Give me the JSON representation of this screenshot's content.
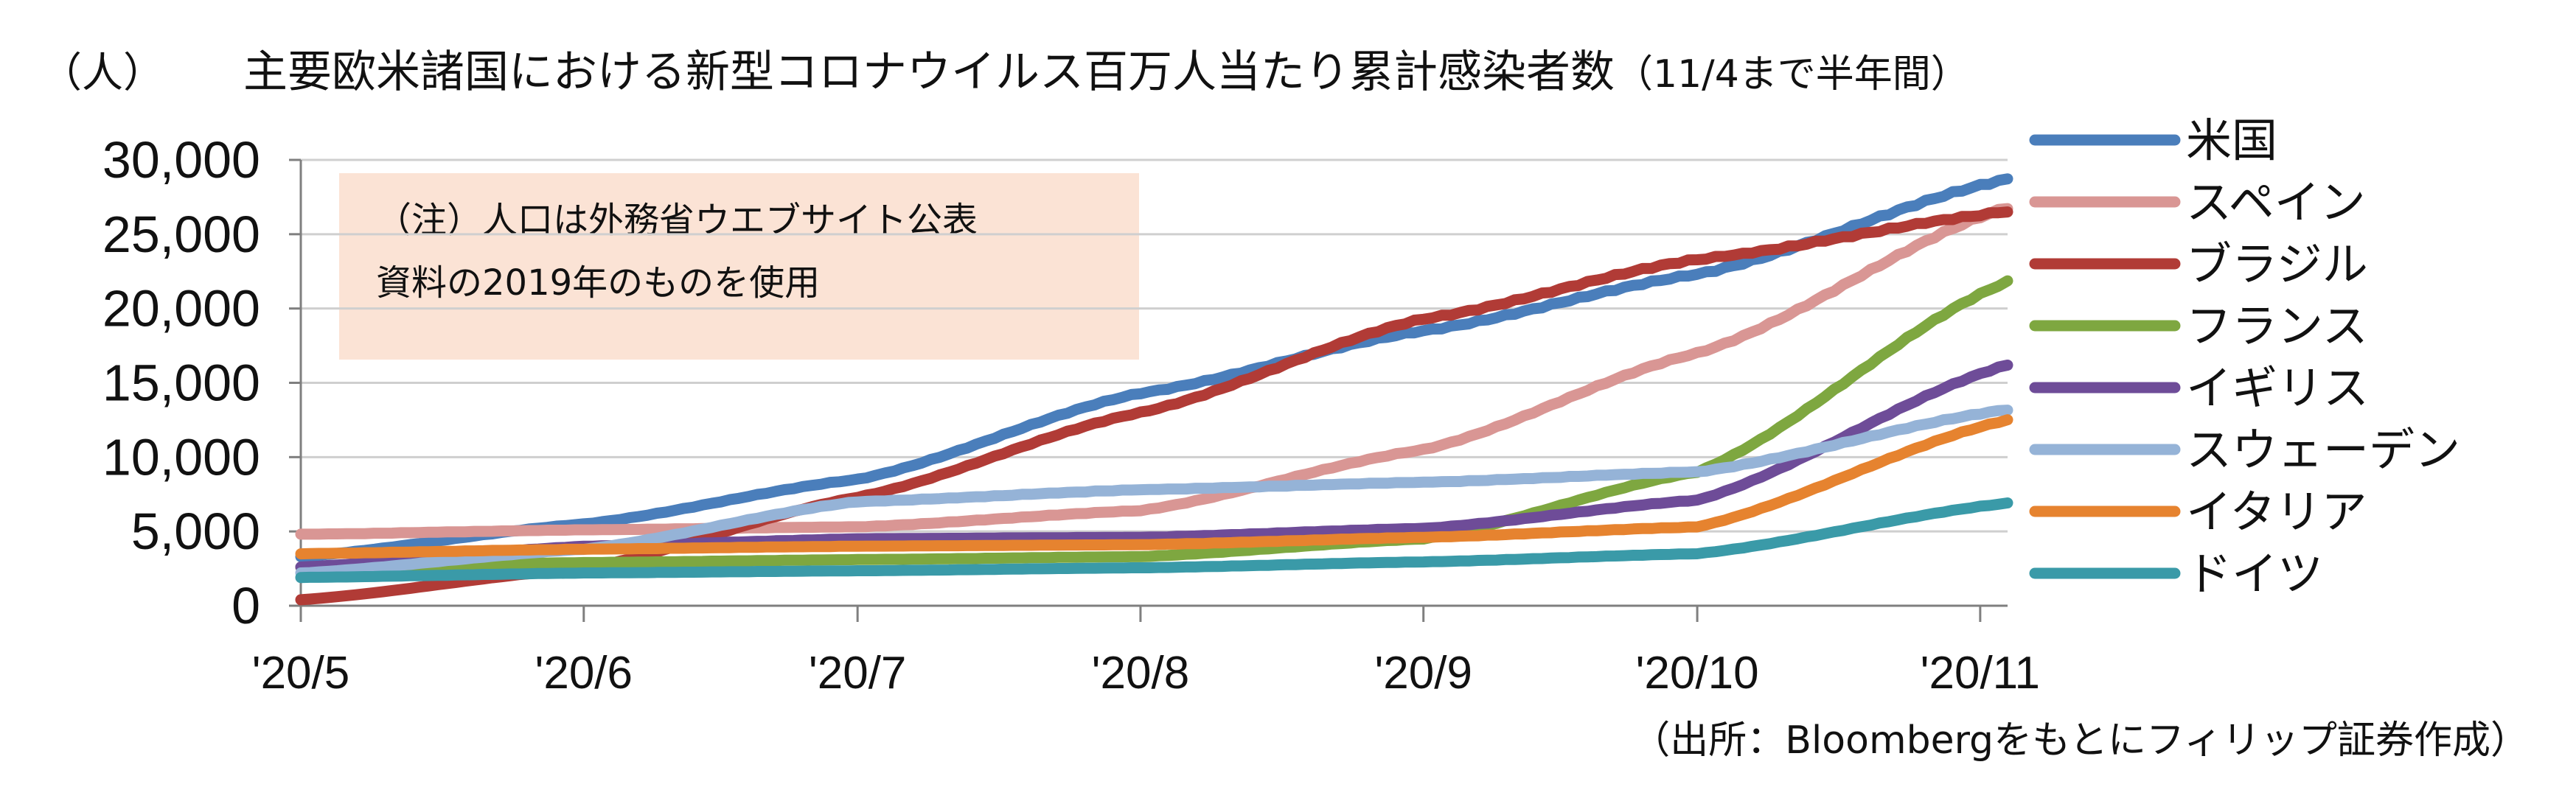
{
  "chart_data": {
    "type": "line",
    "title": "主要欧米諸国における新型コロナウイルス百万人当たり累計感染者数",
    "period_note": "（11/4まで半年間）",
    "unit_label": "（人）",
    "note_lines": [
      "（注）人口は外務省ウエブサイト公表",
      "資料の2019年のものを使用"
    ],
    "source": "（出所：Bloombergをもとにフィリップ証券作成）",
    "ylim": [
      0,
      30000
    ],
    "y_ticks": [
      0,
      5000,
      10000,
      15000,
      20000,
      25000,
      30000
    ],
    "y_tick_labels": [
      "0",
      "5,000",
      "10,000",
      "15,000",
      "20,000",
      "25,000",
      "30,000"
    ],
    "x_range": [
      "2020-05-01",
      "2020-11-04"
    ],
    "x_ticks": [
      "2020-05-01",
      "2020-06-01",
      "2020-07-01",
      "2020-08-01",
      "2020-09-01",
      "2020-10-01",
      "2020-11-01"
    ],
    "x_tick_labels": [
      "'20/5",
      "'20/6",
      "'20/7",
      "'20/8",
      "'20/9",
      "'20/10",
      "'20/11"
    ],
    "legend_position": "right",
    "grid": "horizontal",
    "series": [
      {
        "name": "米国",
        "color": "#4a7ebb",
        "points": [
          [
            "2020-05-01",
            3300
          ],
          [
            "2020-06-01",
            5500
          ],
          [
            "2020-07-01",
            8500
          ],
          [
            "2020-08-01",
            14300
          ],
          [
            "2020-09-01",
            18500
          ],
          [
            "2020-10-01",
            22300
          ],
          [
            "2020-11-04",
            28700
          ]
        ]
      },
      {
        "name": "スペイン",
        "color": "#d99694",
        "points": [
          [
            "2020-05-01",
            4800
          ],
          [
            "2020-06-01",
            5100
          ],
          [
            "2020-07-01",
            5300
          ],
          [
            "2020-08-01",
            6400
          ],
          [
            "2020-09-01",
            10500
          ],
          [
            "2020-10-01",
            17000
          ],
          [
            "2020-11-04",
            26800
          ]
        ]
      },
      {
        "name": "ブラジル",
        "color": "#b13b36",
        "points": [
          [
            "2020-05-01",
            400
          ],
          [
            "2020-06-01",
            2500
          ],
          [
            "2020-07-01",
            7300
          ],
          [
            "2020-08-01",
            13000
          ],
          [
            "2020-09-01",
            19300
          ],
          [
            "2020-10-01",
            23300
          ],
          [
            "2020-11-04",
            26500
          ]
        ]
      },
      {
        "name": "フランス",
        "color": "#7ea740",
        "points": [
          [
            "2020-05-01",
            2600
          ],
          [
            "2020-06-01",
            2900
          ],
          [
            "2020-07-01",
            3100
          ],
          [
            "2020-08-01",
            3300
          ],
          [
            "2020-09-01",
            4500
          ],
          [
            "2020-10-01",
            9000
          ],
          [
            "2020-11-04",
            21800
          ]
        ]
      },
      {
        "name": "イギリス",
        "color": "#6e4c98",
        "points": [
          [
            "2020-05-01",
            2600
          ],
          [
            "2020-06-01",
            4000
          ],
          [
            "2020-07-01",
            4500
          ],
          [
            "2020-08-01",
            4600
          ],
          [
            "2020-09-01",
            5200
          ],
          [
            "2020-10-01",
            7100
          ],
          [
            "2020-11-04",
            16200
          ]
        ]
      },
      {
        "name": "スウェーデン",
        "color": "#95b3d7",
        "points": [
          [
            "2020-05-01",
            2200
          ],
          [
            "2020-06-01",
            3800
          ],
          [
            "2020-07-01",
            7000
          ],
          [
            "2020-08-01",
            7800
          ],
          [
            "2020-09-01",
            8300
          ],
          [
            "2020-10-01",
            9000
          ],
          [
            "2020-11-04",
            13200
          ]
        ]
      },
      {
        "name": "イタリア",
        "color": "#e6832f",
        "points": [
          [
            "2020-05-01",
            3500
          ],
          [
            "2020-06-01",
            3800
          ],
          [
            "2020-07-01",
            4000
          ],
          [
            "2020-08-01",
            4100
          ],
          [
            "2020-09-01",
            4600
          ],
          [
            "2020-10-01",
            5300
          ],
          [
            "2020-11-04",
            12500
          ]
        ]
      },
      {
        "name": "ドイツ",
        "color": "#3a9aa8",
        "points": [
          [
            "2020-05-01",
            1900
          ],
          [
            "2020-06-01",
            2200
          ],
          [
            "2020-07-01",
            2350
          ],
          [
            "2020-08-01",
            2550
          ],
          [
            "2020-09-01",
            2950
          ],
          [
            "2020-10-01",
            3500
          ],
          [
            "2020-11-04",
            6900
          ]
        ]
      }
    ]
  }
}
